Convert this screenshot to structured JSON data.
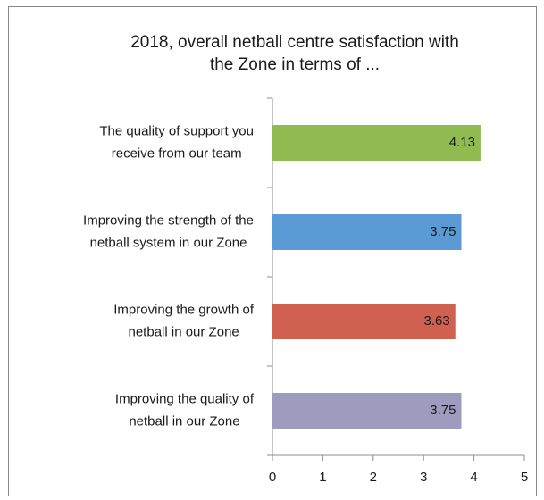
{
  "chart_data": {
    "type": "hbar",
    "title": [
      "2018, overall netball centre satisfaction with",
      "the Zone in terms of ..."
    ],
    "categories": [
      [
        "The quality of support you",
        "receive from our team"
      ],
      [
        "Improving the strength of the",
        "netball system in our Zone"
      ],
      [
        "Improving the growth of",
        "netball in our Zone"
      ],
      [
        "Improving the quality of",
        "netball in our Zone"
      ]
    ],
    "values": [
      4.13,
      3.75,
      3.63,
      3.75
    ],
    "colors": [
      "#8fbb50",
      "#5b9bd5",
      "#d0604f",
      "#9e9cbe"
    ],
    "xlim": [
      0,
      5
    ],
    "xticks": [
      0,
      1,
      2,
      3,
      4,
      5
    ]
  }
}
